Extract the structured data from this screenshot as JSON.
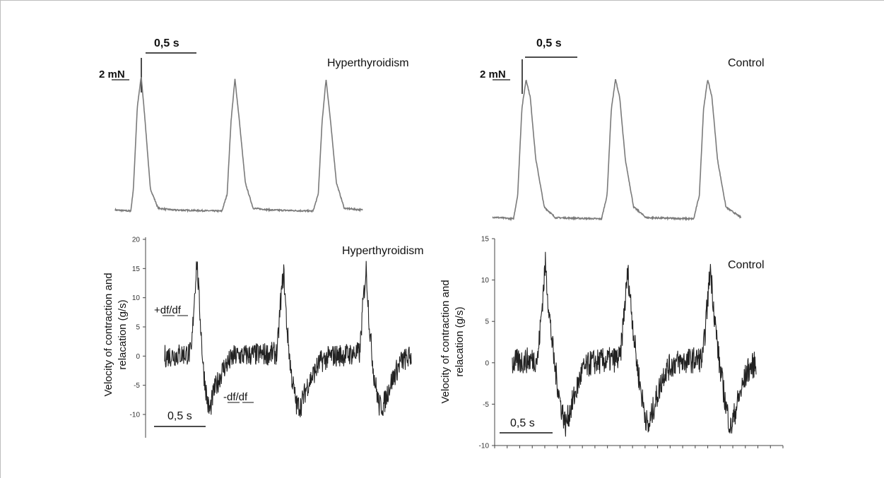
{
  "chart_data": [
    {
      "type": "line",
      "panel": "force-hyperthyroidism",
      "title": "Hyperthyroidism",
      "time_scale_label": "0,5 s",
      "force_scale_label": "2 mN",
      "line_color": "#7a7a7a",
      "series": [
        {
          "values": [
            [
              0.0,
              0.02
            ],
            [
              0.12,
              0.0
            ],
            [
              0.14,
              0.4
            ],
            [
              0.17,
              1.85
            ],
            [
              0.2,
              2.4
            ],
            [
              0.23,
              1.6
            ],
            [
              0.27,
              0.4
            ],
            [
              0.33,
              0.05
            ],
            [
              0.45,
              0.02
            ],
            [
              0.82,
              0.0
            ],
            [
              0.86,
              0.3
            ],
            [
              0.89,
              1.6
            ],
            [
              0.92,
              2.35
            ],
            [
              0.95,
              1.7
            ],
            [
              1.0,
              0.5
            ],
            [
              1.06,
              0.05
            ],
            [
              1.2,
              0.02
            ],
            [
              1.52,
              0.0
            ],
            [
              1.56,
              0.3
            ],
            [
              1.59,
              1.6
            ],
            [
              1.62,
              2.35
            ],
            [
              1.65,
              1.7
            ],
            [
              1.7,
              0.5
            ],
            [
              1.76,
              0.05
            ],
            [
              1.9,
              0.02
            ]
          ]
        }
      ]
    },
    {
      "type": "line",
      "panel": "force-control",
      "title": "Control",
      "time_scale_label": "0,5 s",
      "force_scale_label": "2 mN",
      "line_color": "#7a7a7a",
      "series": [
        {
          "values": [
            [
              0.0,
              0.03
            ],
            [
              0.15,
              0.0
            ],
            [
              0.18,
              0.4
            ],
            [
              0.21,
              1.85
            ],
            [
              0.24,
              2.35
            ],
            [
              0.27,
              2.05
            ],
            [
              0.31,
              1.0
            ],
            [
              0.37,
              0.2
            ],
            [
              0.45,
              0.02
            ],
            [
              0.78,
              0.0
            ],
            [
              0.82,
              0.4
            ],
            [
              0.85,
              1.85
            ],
            [
              0.88,
              2.35
            ],
            [
              0.91,
              2.05
            ],
            [
              0.95,
              1.0
            ],
            [
              1.01,
              0.2
            ],
            [
              1.1,
              0.02
            ],
            [
              1.44,
              0.0
            ],
            [
              1.48,
              0.4
            ],
            [
              1.51,
              1.85
            ],
            [
              1.54,
              2.35
            ],
            [
              1.57,
              2.05
            ],
            [
              1.61,
              1.0
            ],
            [
              1.67,
              0.2
            ],
            [
              1.78,
              0.02
            ]
          ]
        }
      ]
    },
    {
      "type": "line",
      "panel": "velocity-hyperthyroidism",
      "title": "Hyperthyroidism",
      "ylabel_line1": "Velocity of contraction and",
      "ylabel_line2": "relacation (g/s)",
      "ylim": [
        -10,
        20
      ],
      "yticks": [
        "20",
        "15",
        "10",
        "5",
        "0",
        "-5",
        "-10"
      ],
      "time_scale_label": "0,5 s",
      "annotation_positive": "+df/df",
      "annotation_negative": "-df/df",
      "line_color": "#222222",
      "noise_amplitude": 2.0,
      "series": [
        {
          "values": [
            [
              0.0,
              0.0
            ],
            [
              0.25,
              0.5
            ],
            [
              0.27,
              8.0
            ],
            [
              0.3,
              16.5
            ],
            [
              0.33,
              7.0
            ],
            [
              0.36,
              -2.0
            ],
            [
              0.4,
              -8.0
            ],
            [
              0.42,
              -9.5
            ],
            [
              0.46,
              -6.0
            ],
            [
              0.55,
              -2.0
            ],
            [
              0.65,
              0.0
            ],
            [
              1.05,
              0.5
            ],
            [
              1.08,
              9.0
            ],
            [
              1.11,
              14.5
            ],
            [
              1.14,
              5.0
            ],
            [
              1.18,
              -3.0
            ],
            [
              1.23,
              -8.5
            ],
            [
              1.27,
              -8.5
            ],
            [
              1.33,
              -5.0
            ],
            [
              1.45,
              -1.0
            ],
            [
              1.55,
              0.0
            ],
            [
              1.82,
              0.5
            ],
            [
              1.85,
              9.0
            ],
            [
              1.88,
              15.0
            ],
            [
              1.91,
              5.0
            ],
            [
              1.95,
              -3.0
            ],
            [
              2.0,
              -8.5
            ],
            [
              2.04,
              -8.5
            ],
            [
              2.1,
              -5.0
            ],
            [
              2.2,
              -1.0
            ],
            [
              2.3,
              0.0
            ]
          ]
        }
      ]
    },
    {
      "type": "line",
      "panel": "velocity-control",
      "title": "Control",
      "ylabel_line1": "Velocity of contraction and",
      "ylabel_line2": "relacation (g/s)",
      "ylim": [
        -10,
        15
      ],
      "yticks": [
        "15",
        "10",
        "5",
        "0",
        "-5",
        "-10"
      ],
      "x_tick_count": 24,
      "time_scale_label": "0,5 s",
      "line_color": "#222222",
      "noise_amplitude": 1.6,
      "series": [
        {
          "values": [
            [
              0.0,
              0.0
            ],
            [
              0.2,
              0.5
            ],
            [
              0.23,
              6.0
            ],
            [
              0.26,
              12.0
            ],
            [
              0.29,
              6.0
            ],
            [
              0.33,
              0.0
            ],
            [
              0.38,
              -5.0
            ],
            [
              0.42,
              -7.5
            ],
            [
              0.47,
              -5.0
            ],
            [
              0.55,
              -1.0
            ],
            [
              0.62,
              0.0
            ],
            [
              0.85,
              0.5
            ],
            [
              0.88,
              6.0
            ],
            [
              0.91,
              11.0
            ],
            [
              0.94,
              6.0
            ],
            [
              0.98,
              0.0
            ],
            [
              1.03,
              -5.0
            ],
            [
              1.07,
              -8.0
            ],
            [
              1.12,
              -5.0
            ],
            [
              1.2,
              -1.0
            ],
            [
              1.28,
              0.0
            ],
            [
              1.5,
              0.5
            ],
            [
              1.53,
              6.0
            ],
            [
              1.56,
              11.5
            ],
            [
              1.59,
              6.0
            ],
            [
              1.63,
              0.0
            ],
            [
              1.68,
              -5.0
            ],
            [
              1.72,
              -8.0
            ],
            [
              1.77,
              -5.0
            ],
            [
              1.85,
              -1.0
            ],
            [
              1.92,
              0.0
            ]
          ]
        }
      ]
    }
  ]
}
